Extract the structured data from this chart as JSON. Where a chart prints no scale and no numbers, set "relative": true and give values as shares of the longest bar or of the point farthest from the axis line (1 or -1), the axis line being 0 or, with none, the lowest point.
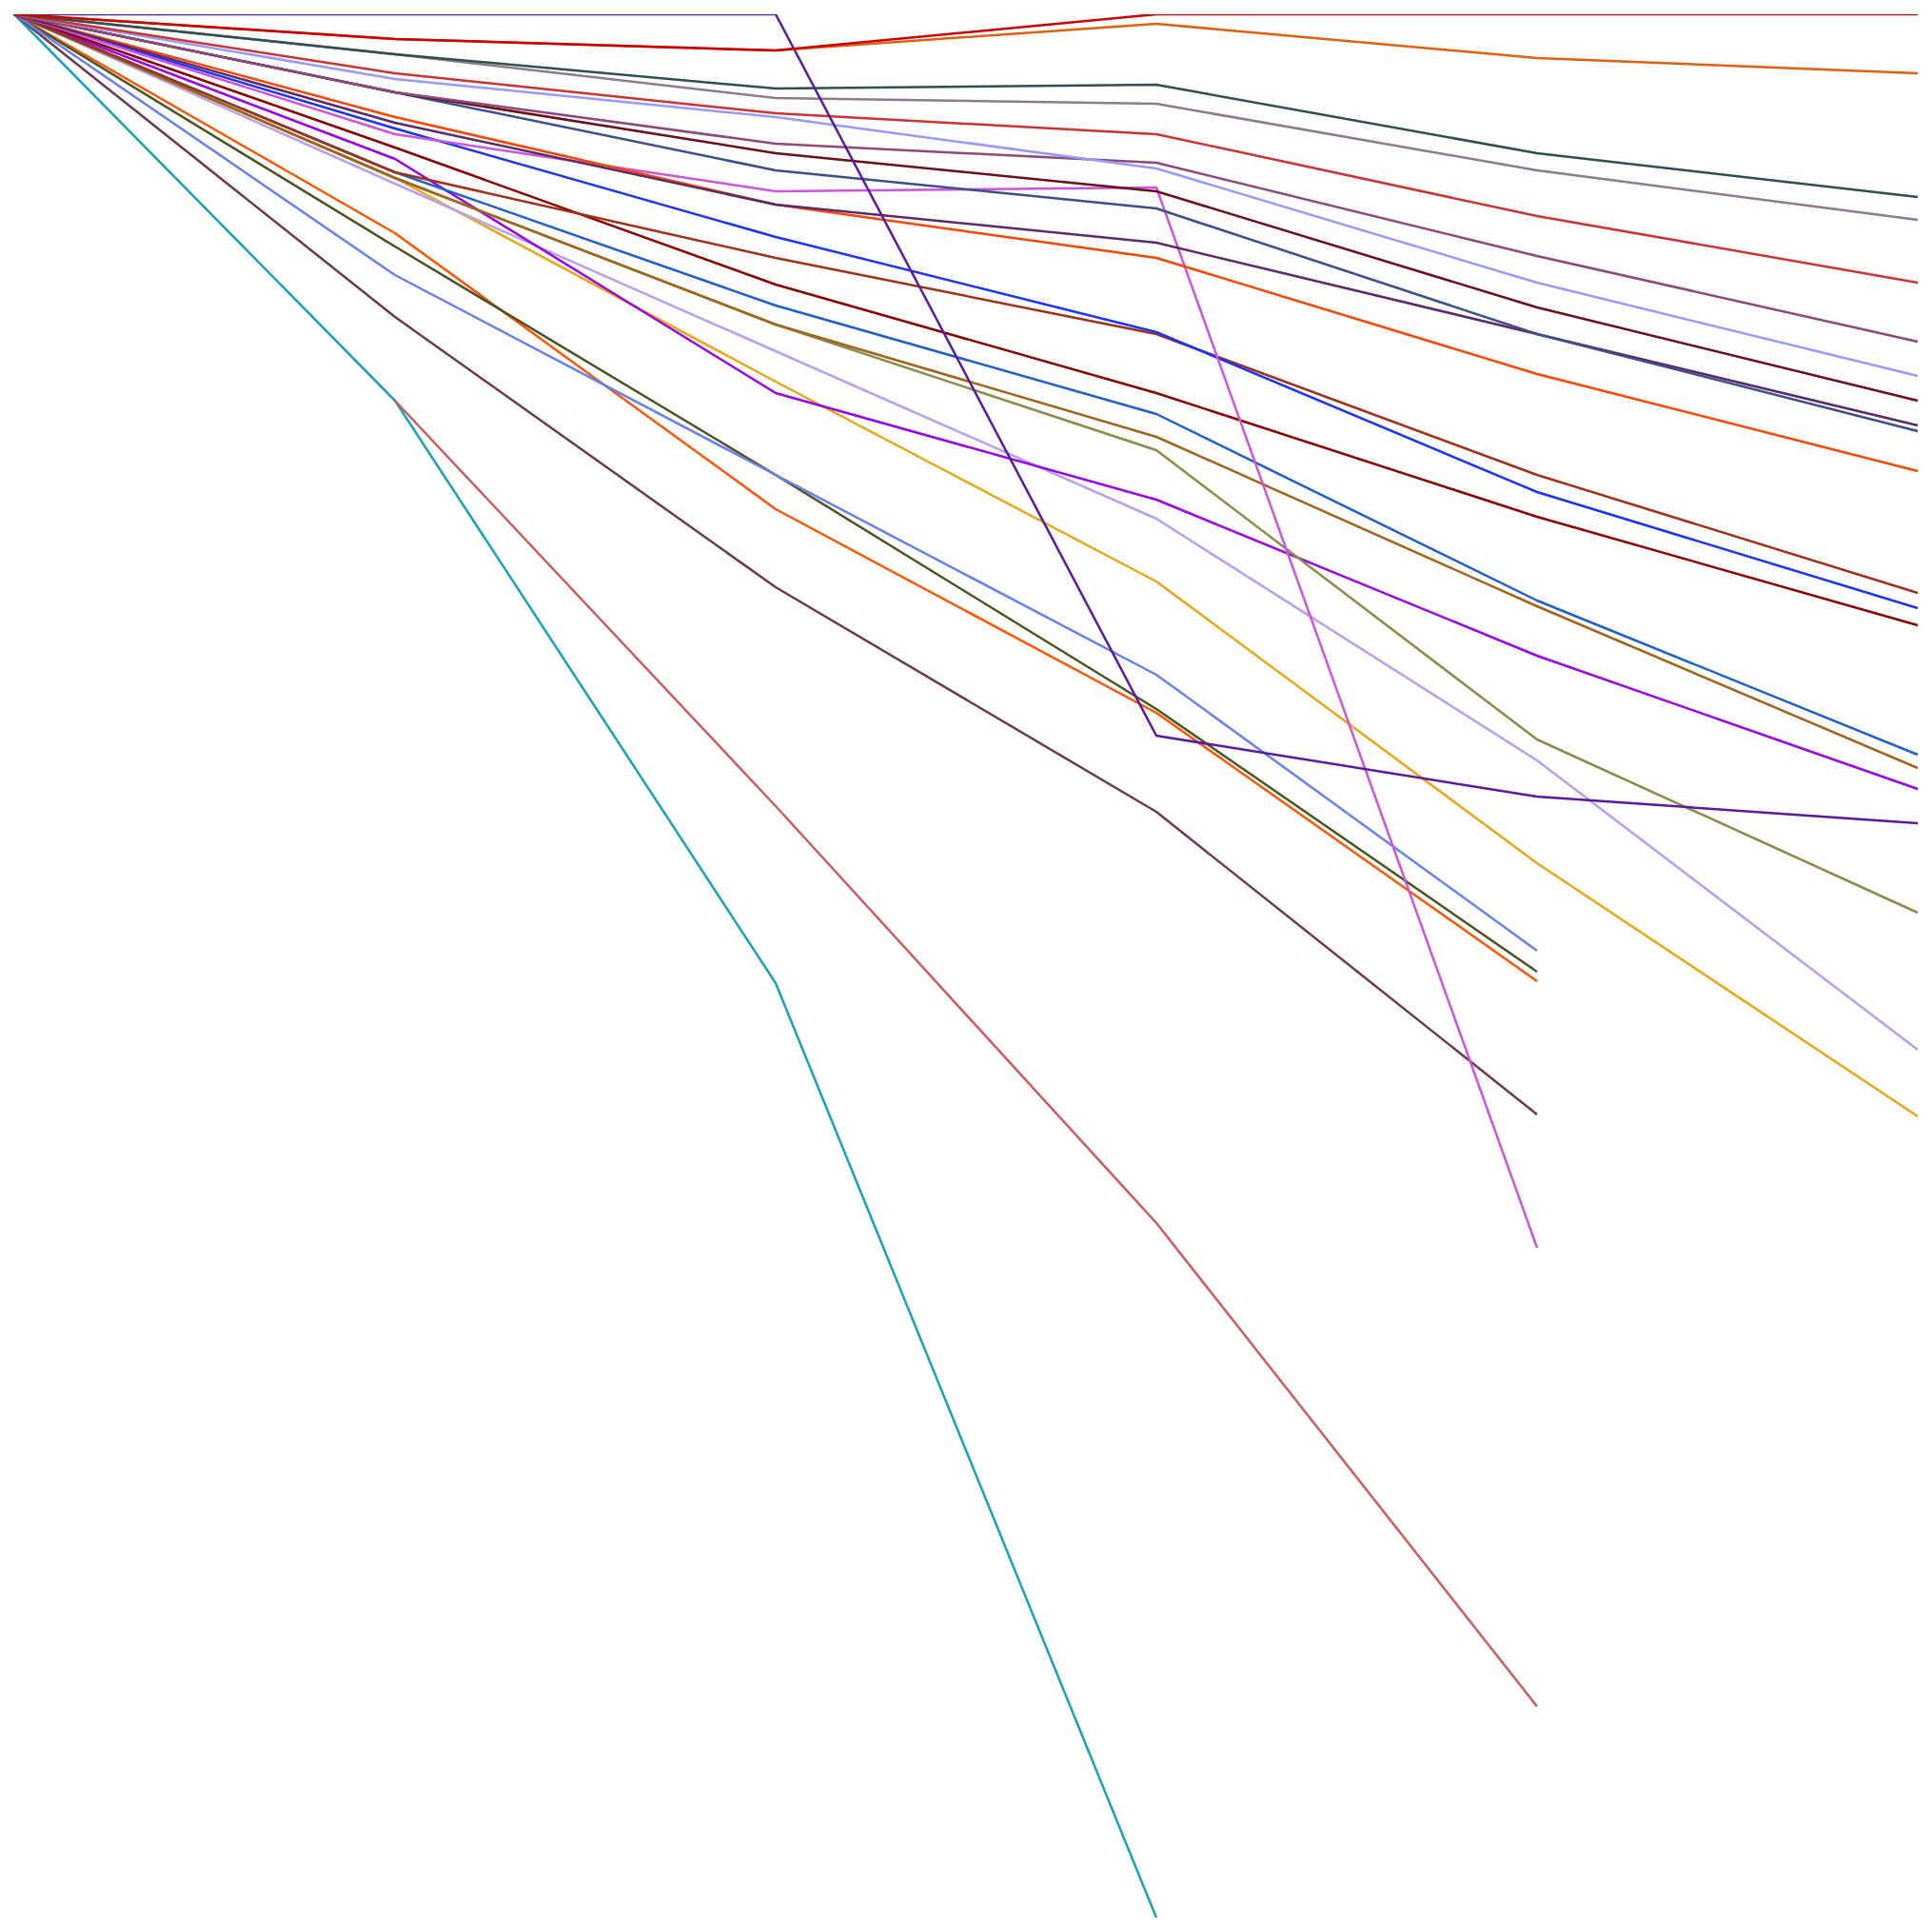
{
  "chart_data": {
    "type": "line",
    "relative": true,
    "categories": [
      null,
      null,
      null,
      null,
      null,
      null
    ],
    "series": [
      {
        "color": "#cc0000",
        "values": [
          1,
          0.987,
          0.981,
          1,
          1,
          1
        ]
      },
      {
        "color": "#e06010",
        "values": [
          1,
          0.987,
          0.981,
          0.995,
          0.977,
          0.969
        ]
      },
      {
        "color": "#5a1aa0",
        "values": [
          1,
          1,
          1,
          0.621,
          0.589,
          0.575
        ]
      },
      {
        "color": "#2f4f4f",
        "values": [
          1,
          0.979,
          0.961,
          0.963,
          0.927,
          0.904
        ]
      },
      {
        "color": "#8b7b8b",
        "values": [
          1,
          0.979,
          0.956,
          0.953,
          0.918,
          0.892
        ]
      },
      {
        "color": "#cc3333",
        "values": [
          1,
          0.969,
          0.948,
          0.937,
          0.894,
          0.859
        ]
      },
      {
        "color": "#9999ff",
        "values": [
          1,
          0.966,
          0.946,
          0.919,
          0.859,
          0.81
        ]
      },
      {
        "color": "#8b4a7a",
        "values": [
          1,
          0.959,
          0.932,
          0.922,
          0.873,
          0.828
        ]
      },
      {
        "color": "#6b0f1a",
        "values": [
          1,
          0.959,
          0.927,
          0.907,
          0.846,
          0.797
        ]
      },
      {
        "color": "#3c4f8a",
        "values": [
          1,
          0.959,
          0.918,
          0.898,
          0.832,
          0.781
        ]
      },
      {
        "color": "#5c2a6a",
        "values": [
          1,
          0.943,
          0.9,
          0.88,
          0.832,
          0.784
        ]
      },
      {
        "color": "#ff4500",
        "values": [
          1,
          0.946,
          0.9,
          0.872,
          0.811,
          0.76
        ]
      },
      {
        "color": "#cc55dd",
        "values": [
          1,
          0.937,
          0.907,
          0.909,
          0.352,
          null
        ]
      },
      {
        "color": "#1a33ff",
        "values": [
          1,
          0.94,
          0.883,
          0.833,
          0.749,
          0.688
        ]
      },
      {
        "color": "#a0301a",
        "values": [
          1,
          0.917,
          0.872,
          0.832,
          0.758,
          0.696
        ]
      },
      {
        "color": "#8b0000",
        "values": [
          1,
          0.93,
          0.858,
          0.801,
          0.736,
          0.679
        ]
      },
      {
        "color": "#1e5fcc",
        "values": [
          1,
          0.917,
          0.847,
          0.79,
          0.692,
          0.611
        ]
      },
      {
        "color": "#a0651a",
        "values": [
          1,
          0.914,
          0.837,
          0.778,
          0.689,
          0.604
        ]
      },
      {
        "color": "#8b8b4a",
        "values": [
          1,
          0.914,
          0.837,
          0.771,
          0.619,
          0.528
        ]
      },
      {
        "color": "#9900ee",
        "values": [
          1,
          0.924,
          0.801,
          0.745,
          0.663,
          0.593
        ]
      },
      {
        "color": "#b8a0ee",
        "values": [
          1,
          0.911,
          0.823,
          0.735,
          0.608,
          0.456
        ]
      },
      {
        "color": "#e6a817",
        "values": [
          1,
          0.914,
          0.807,
          0.702,
          0.554,
          0.421
        ]
      },
      {
        "color": "#6680ee",
        "values": [
          1,
          0.863,
          0.758,
          0.653,
          0.508,
          null
        ]
      },
      {
        "color": "#4b5320",
        "values": [
          1,
          0.878,
          0.758,
          0.635,
          0.497,
          null
        ]
      },
      {
        "color": "#ff5500",
        "values": [
          1,
          0.885,
          0.74,
          0.633,
          0.492,
          null
        ]
      },
      {
        "color": "#6b3a50",
        "values": [
          1,
          0.841,
          0.699,
          0.581,
          0.422,
          null
        ]
      },
      {
        "color": "#cd5c5c",
        "values": [
          null,
          0.797,
          0.584,
          0.365,
          0.111,
          null
        ]
      },
      {
        "color": "#17a2b8",
        "values": [
          1,
          0.797,
          0.491,
          0,
          null,
          null
        ]
      }
    ]
  }
}
